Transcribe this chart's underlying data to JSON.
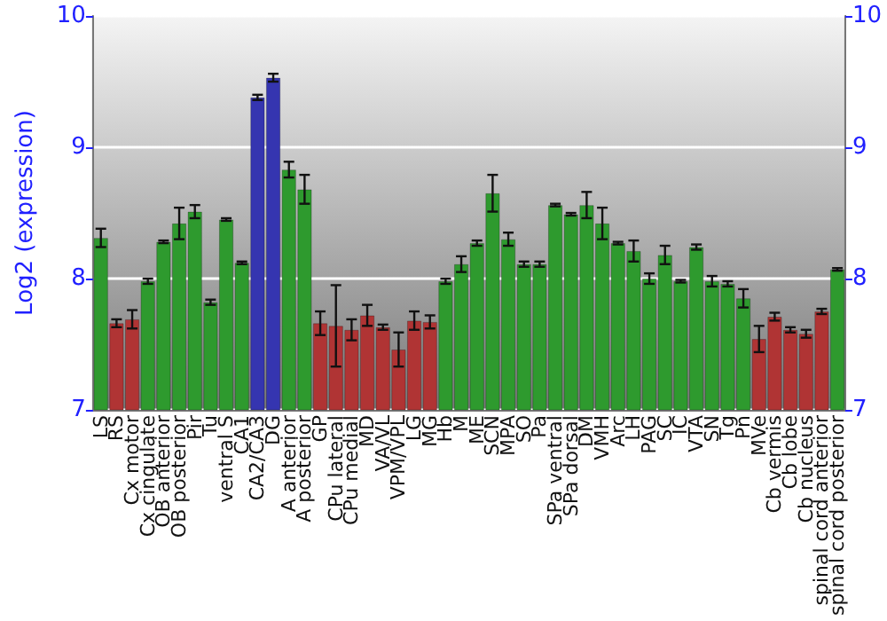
{
  "chart_data": {
    "type": "bar",
    "ylabel": "Log2 (expression)",
    "categories": [
      "LS",
      "RS",
      "Cx motor",
      "Cx cingulate",
      "OB anterior",
      "OB posterior",
      "Pir",
      "Tu",
      "ventral S",
      "CA1",
      "CA2/CA3",
      "DG",
      "A anterior",
      "A posterior",
      "GP",
      "CPu lateral",
      "CPu medial",
      "MD",
      "VA/VL",
      "VPM/VPL",
      "LG",
      "MG",
      "Hb",
      "M",
      "ME",
      "SCN",
      "MPA",
      "SO",
      "Pa",
      "SPa ventral",
      "SPa dorsal",
      "DM",
      "VMH",
      "Arc",
      "LH",
      "PAG",
      "SC",
      "IC",
      "VTA",
      "SN",
      "Tg",
      "Pn",
      "MVe",
      "Cb vermis",
      "Cb lobe",
      "Cb nucleus",
      "spinal cord anterior",
      "spinal cord posterior"
    ],
    "values": [
      8.31,
      7.66,
      7.69,
      7.98,
      8.28,
      8.42,
      8.51,
      7.82,
      8.45,
      8.12,
      9.38,
      9.53,
      8.83,
      8.68,
      7.66,
      7.64,
      7.61,
      7.72,
      7.63,
      7.46,
      7.68,
      7.67,
      7.98,
      8.11,
      8.27,
      8.65,
      8.3,
      8.11,
      8.11,
      8.56,
      8.49,
      8.56,
      8.42,
      8.27,
      8.21,
      8,
      8.18,
      7.98,
      8.24,
      7.98,
      7.96,
      7.85,
      7.54,
      7.71,
      7.61,
      7.58,
      7.75,
      8.07
    ],
    "errors": [
      0.07,
      0.03,
      0.07,
      0.02,
      0.01,
      0.12,
      0.05,
      0.02,
      0.01,
      0.01,
      0.02,
      0.03,
      0.06,
      0.11,
      0.09,
      0.31,
      0.08,
      0.08,
      0.02,
      0.13,
      0.07,
      0.05,
      0.02,
      0.06,
      0.02,
      0.14,
      0.05,
      0.02,
      0.02,
      0.01,
      0.01,
      0.1,
      0.12,
      0.01,
      0.08,
      0.04,
      0.07,
      0.01,
      0.02,
      0.04,
      0.02,
      0.07,
      0.1,
      0.03,
      0.02,
      0.03,
      0.02,
      0.01
    ],
    "colors": [
      "#2e9a2e",
      "#b03434",
      "#b03434",
      "#2e9a2e",
      "#2e9a2e",
      "#2e9a2e",
      "#2e9a2e",
      "#2e9a2e",
      "#2e9a2e",
      "#2e9a2e",
      "#3535b0",
      "#3535b0",
      "#2e9a2e",
      "#2e9a2e",
      "#b03434",
      "#b03434",
      "#b03434",
      "#b03434",
      "#b03434",
      "#b03434",
      "#b03434",
      "#b03434",
      "#2e9a2e",
      "#2e9a2e",
      "#2e9a2e",
      "#2e9a2e",
      "#2e9a2e",
      "#2e9a2e",
      "#2e9a2e",
      "#2e9a2e",
      "#2e9a2e",
      "#2e9a2e",
      "#2e9a2e",
      "#2e9a2e",
      "#2e9a2e",
      "#2e9a2e",
      "#2e9a2e",
      "#2e9a2e",
      "#2e9a2e",
      "#2e9a2e",
      "#2e9a2e",
      "#2e9a2e",
      "#b03434",
      "#b03434",
      "#b03434",
      "#b03434",
      "#b03434",
      "#2e9a2e"
    ],
    "ylim": [
      7,
      10
    ],
    "yticks": [
      7,
      8,
      9,
      10
    ],
    "y2lim": [
      7,
      10
    ],
    "y2ticks": [
      7,
      8,
      9,
      10
    ],
    "grid": "y"
  }
}
